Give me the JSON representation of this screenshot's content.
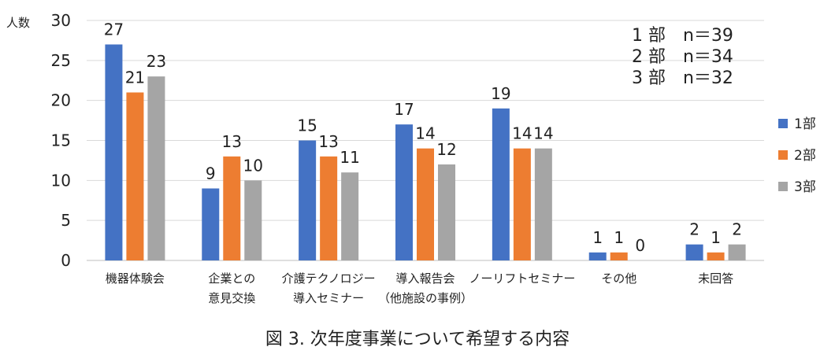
{
  "chart_data": {
    "type": "bar",
    "title": "",
    "caption": "図 3.  次年度事業について希望する内容",
    "ylabel": "人数",
    "xlabel": "",
    "ylim": [
      0,
      30
    ],
    "yticks": [
      0,
      5,
      10,
      15,
      20,
      25,
      30
    ],
    "grid": true,
    "legend": "right",
    "categories": [
      [
        "機器体験会"
      ],
      [
        "企業との",
        "意見交換"
      ],
      [
        "介護テクノロジー",
        "導入セミナー"
      ],
      [
        "導入報告会",
        "（他施設の事例）"
      ],
      [
        "ノーリフトセミナー"
      ],
      [
        "その他"
      ],
      [
        "未回答"
      ]
    ],
    "series": [
      {
        "name": "1部",
        "color": "#4472C4",
        "values": [
          27,
          9,
          15,
          17,
          19,
          1,
          2
        ]
      },
      {
        "name": "2部",
        "color": "#ED7D31",
        "values": [
          21,
          13,
          13,
          14,
          14,
          1,
          1
        ]
      },
      {
        "name": "3部",
        "color": "#A5A5A5",
        "values": [
          23,
          10,
          11,
          12,
          14,
          0,
          2
        ]
      }
    ],
    "annotations": [
      "1 部　n＝39",
      "2 部　n＝34",
      "3 部　n＝32"
    ]
  }
}
